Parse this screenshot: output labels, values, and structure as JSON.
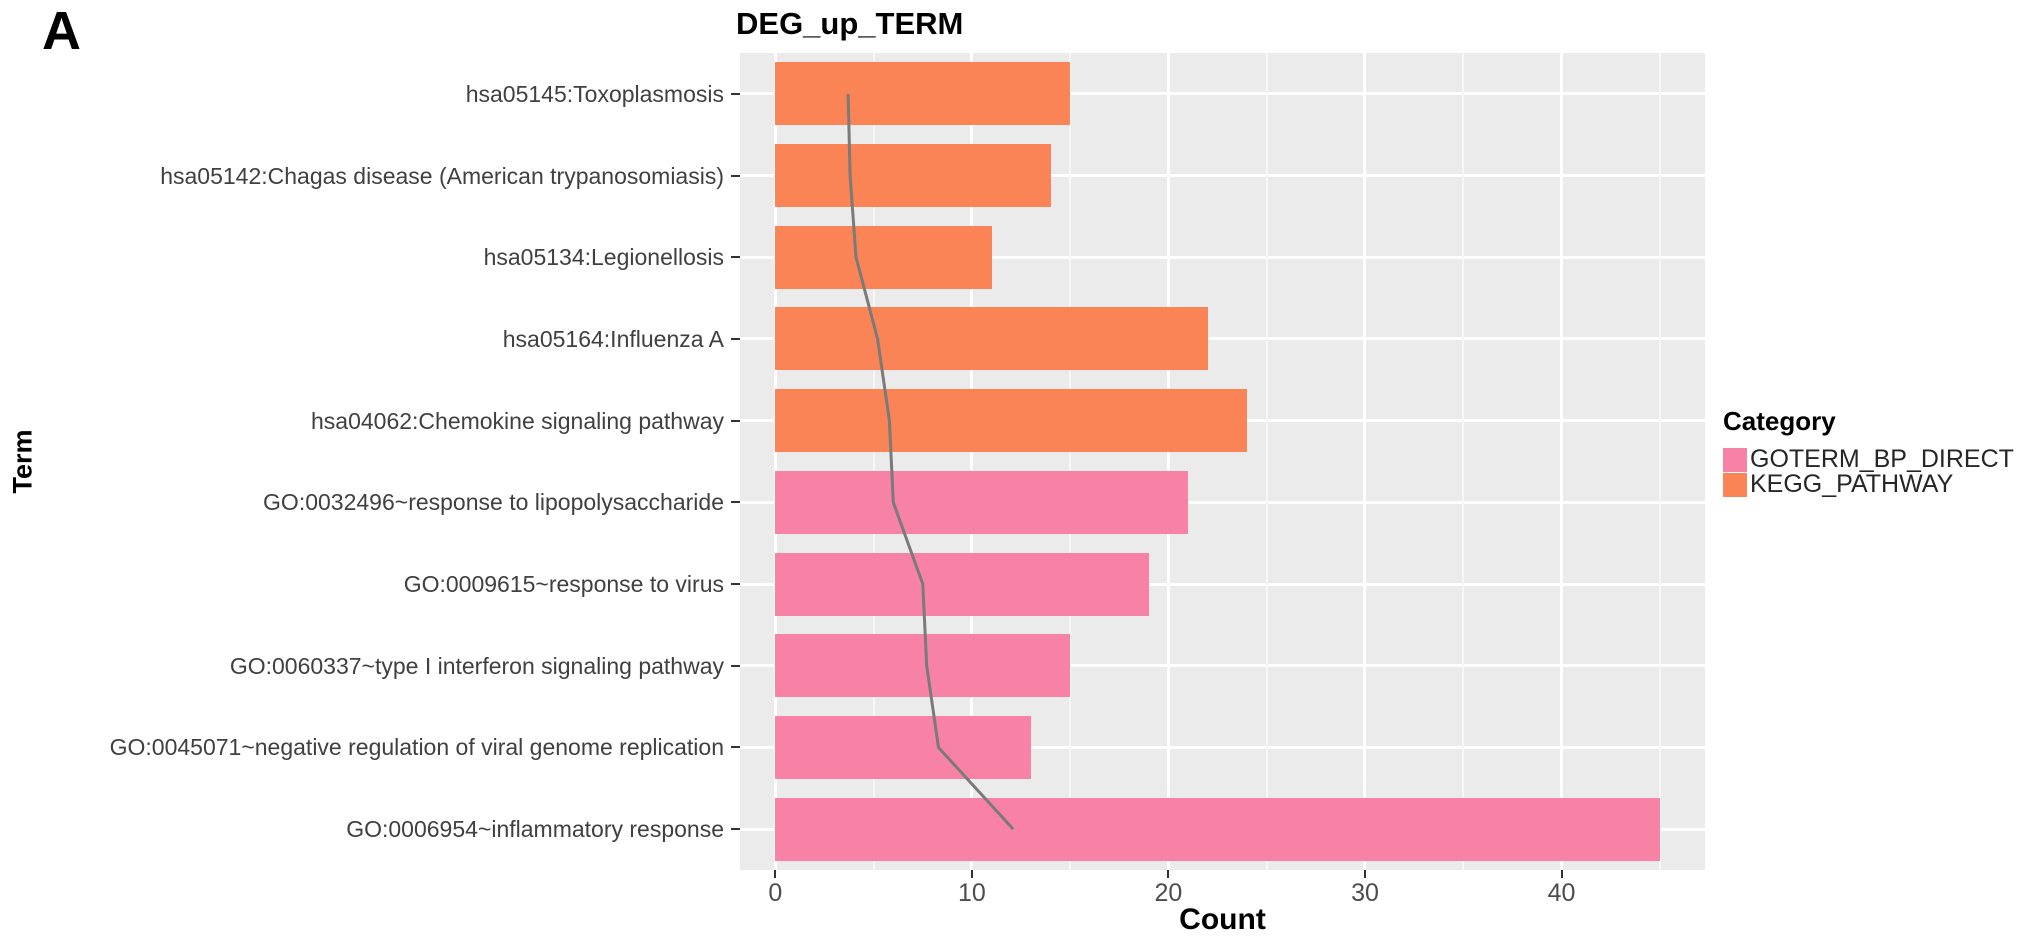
{
  "figure": {
    "panel_label": "A"
  },
  "chart_data": {
    "type": "bar",
    "orientation": "horizontal",
    "title": "DEG_up_TERM",
    "xlabel": "Count",
    "ylabel": "Term",
    "categories": [
      "hsa05145:Toxoplasmosis",
      "hsa05142:Chagas disease (American trypanosomiasis)",
      "hsa05134:Legionellosis",
      "hsa05164:Influenza A",
      "hsa04062:Chemokine signaling pathway",
      "GO:0032496~response to lipopolysaccharide",
      "GO:0009615~response to virus",
      "GO:0060337~type I interferon signaling pathway",
      "GO:0045071~negative regulation of viral genome replication",
      "GO:0006954~inflammatory response"
    ],
    "values": [
      15,
      14,
      11,
      22,
      24,
      21,
      19,
      15,
      13,
      45
    ],
    "bar_groups": [
      "KEGG_PATHWAY",
      "KEGG_PATHWAY",
      "KEGG_PATHWAY",
      "KEGG_PATHWAY",
      "KEGG_PATHWAY",
      "GOTERM_BP_DIRECT",
      "GOTERM_BP_DIRECT",
      "GOTERM_BP_DIRECT",
      "GOTERM_BP_DIRECT",
      "GOTERM_BP_DIRECT"
    ],
    "group_colors": {
      "GOTERM_BP_DIRECT": "#F882A5",
      "KEGG_PATHWAY": "#FA8456"
    },
    "overlay_line": {
      "values_in_count_units": [
        3.7,
        3.8,
        4.1,
        5.2,
        5.8,
        6.0,
        7.5,
        7.7,
        8.3,
        12.1
      ],
      "color": "#7A7A7A"
    },
    "legend": {
      "title": "Category",
      "position": "right",
      "entries": [
        {
          "label": "GOTERM_BP_DIRECT",
          "color": "#F882A5"
        },
        {
          "label": "KEGG_PATHWAY",
          "color": "#FA8456"
        }
      ]
    },
    "axis": {
      "xlim": [
        -1.8,
        47.3
      ],
      "x_major_ticks": [
        0,
        10,
        20,
        30,
        40
      ],
      "x_minor_ticks": [
        5,
        15,
        25,
        35,
        45
      ],
      "grid": true,
      "panel_bg": "#EBEBEB",
      "grid_color": "#FFFFFF"
    }
  }
}
